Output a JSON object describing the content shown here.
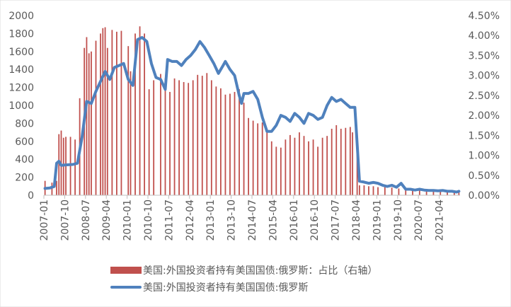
{
  "chart_data": {
    "type": "bar+line",
    "title": "",
    "left_axis": {
      "min": 0,
      "max": 2000,
      "step": 200,
      "ticks": [
        "0",
        "200",
        "400",
        "600",
        "800",
        "1000",
        "1200",
        "1400",
        "1600",
        "1800",
        "2000"
      ]
    },
    "right_axis": {
      "min": 0,
      "max": 4.5,
      "step": 0.5,
      "ticks": [
        "0.00%",
        "0.50%",
        "1.00%",
        "1.50%",
        "2.00%",
        "2.50%",
        "3.00%",
        "3.50%",
        "4.00%",
        "4.50%"
      ]
    },
    "x_start": "2007-01",
    "x_end": "2021-12",
    "x_tick_labels": [
      "2007-01",
      "2007-10",
      "2008-07",
      "2009-04",
      "2010-01",
      "2010-10",
      "2011-07",
      "2012-04",
      "2013-01",
      "2013-10",
      "2014-07",
      "2015-04",
      "2016-01",
      "2016-10",
      "2017-07",
      "2018-04",
      "2019-01",
      "2019-10",
      "2020-07",
      "2021-04"
    ],
    "series": [
      {
        "name": "美国:外国投资者持有美国国债:俄罗斯：占比（右轴）",
        "kind": "bar",
        "axis": "left",
        "color": "#c0504d",
        "points": [
          [
            "2007-01",
            160
          ],
          [
            "2007-04",
            140
          ],
          [
            "2007-06",
            160
          ],
          [
            "2007-07",
            680
          ],
          [
            "2007-08",
            720
          ],
          [
            "2007-09",
            640
          ],
          [
            "2007-10",
            650
          ],
          [
            "2007-12",
            650
          ],
          [
            "2008-02",
            620
          ],
          [
            "2008-04",
            1080
          ],
          [
            "2008-06",
            1640
          ],
          [
            "2008-07",
            1760
          ],
          [
            "2008-08",
            1580
          ],
          [
            "2008-09",
            1600
          ],
          [
            "2008-11",
            1720
          ],
          [
            "2009-01",
            1800
          ],
          [
            "2009-02",
            1860
          ],
          [
            "2009-03",
            1870
          ],
          [
            "2009-04",
            1640
          ],
          [
            "2009-06",
            1840
          ],
          [
            "2009-08",
            1820
          ],
          [
            "2009-10",
            1830
          ],
          [
            "2010-01",
            1660
          ],
          [
            "2010-02",
            1380
          ],
          [
            "2010-04",
            1800
          ],
          [
            "2010-06",
            1880
          ],
          [
            "2010-08",
            1800
          ],
          [
            "2010-10",
            1180
          ],
          [
            "2010-12",
            1280
          ],
          [
            "2011-03",
            1350
          ],
          [
            "2011-05",
            1300
          ],
          [
            "2011-07",
            1150
          ],
          [
            "2011-09",
            1300
          ],
          [
            "2011-11",
            1280
          ],
          [
            "2012-01",
            1260
          ],
          [
            "2012-03",
            1250
          ],
          [
            "2012-05",
            1280
          ],
          [
            "2012-07",
            1340
          ],
          [
            "2012-09",
            1330
          ],
          [
            "2012-11",
            1360
          ],
          [
            "2013-01",
            1280
          ],
          [
            "2013-03",
            1210
          ],
          [
            "2013-05",
            1190
          ],
          [
            "2013-07",
            1120
          ],
          [
            "2013-09",
            1130
          ],
          [
            "2013-11",
            1150
          ],
          [
            "2014-01",
            1180
          ],
          [
            "2014-03",
            1030
          ],
          [
            "2014-05",
            860
          ],
          [
            "2014-07",
            830
          ],
          [
            "2014-09",
            800
          ],
          [
            "2014-11",
            810
          ],
          [
            "2015-01",
            740
          ],
          [
            "2015-03",
            600
          ],
          [
            "2015-05",
            540
          ],
          [
            "2015-07",
            530
          ],
          [
            "2015-09",
            620
          ],
          [
            "2015-11",
            670
          ],
          [
            "2016-01",
            640
          ],
          [
            "2016-03",
            700
          ],
          [
            "2016-05",
            660
          ],
          [
            "2016-07",
            600
          ],
          [
            "2016-09",
            620
          ],
          [
            "2016-11",
            540
          ],
          [
            "2017-01",
            640
          ],
          [
            "2017-03",
            660
          ],
          [
            "2017-05",
            740
          ],
          [
            "2017-07",
            780
          ],
          [
            "2017-09",
            740
          ],
          [
            "2017-11",
            750
          ],
          [
            "2018-01",
            760
          ],
          [
            "2018-02",
            700
          ],
          [
            "2018-04",
            660
          ],
          [
            "2018-05",
            110
          ],
          [
            "2018-07",
            110
          ],
          [
            "2018-09",
            100
          ],
          [
            "2018-11",
            100
          ],
          [
            "2019-01",
            90
          ],
          [
            "2019-04",
            90
          ],
          [
            "2019-07",
            85
          ],
          [
            "2019-10",
            75
          ],
          [
            "2020-01",
            80
          ],
          [
            "2020-04",
            70
          ],
          [
            "2020-07",
            70
          ],
          [
            "2020-10",
            65
          ],
          [
            "2021-01",
            60
          ],
          [
            "2021-04",
            55
          ],
          [
            "2021-07",
            50
          ],
          [
            "2021-10",
            45
          ],
          [
            "2021-12",
            40
          ]
        ]
      },
      {
        "name": "美国:外国投资者持有美国国债:俄罗斯",
        "kind": "line",
        "axis": "right",
        "color": "#4f81bd",
        "points": [
          [
            "2007-01",
            0.17
          ],
          [
            "2007-03",
            0.18
          ],
          [
            "2007-05",
            0.22
          ],
          [
            "2007-06",
            0.8
          ],
          [
            "2007-07",
            0.85
          ],
          [
            "2007-08",
            0.75
          ],
          [
            "2007-10",
            0.76
          ],
          [
            "2008-01",
            0.77
          ],
          [
            "2008-03",
            0.8
          ],
          [
            "2008-05",
            1.45
          ],
          [
            "2008-07",
            2.35
          ],
          [
            "2008-09",
            2.3
          ],
          [
            "2008-11",
            2.6
          ],
          [
            "2009-01",
            2.85
          ],
          [
            "2009-03",
            3.1
          ],
          [
            "2009-05",
            2.9
          ],
          [
            "2009-07",
            3.2
          ],
          [
            "2009-09",
            3.25
          ],
          [
            "2009-11",
            3.3
          ],
          [
            "2010-01",
            2.9
          ],
          [
            "2010-03",
            2.75
          ],
          [
            "2010-05",
            3.9
          ],
          [
            "2010-07",
            3.95
          ],
          [
            "2010-09",
            3.85
          ],
          [
            "2010-11",
            3.3
          ],
          [
            "2011-01",
            2.95
          ],
          [
            "2011-03",
            2.9
          ],
          [
            "2011-05",
            2.65
          ],
          [
            "2011-06",
            3.4
          ],
          [
            "2011-08",
            3.35
          ],
          [
            "2011-10",
            3.35
          ],
          [
            "2011-12",
            3.25
          ],
          [
            "2012-02",
            3.4
          ],
          [
            "2012-04",
            3.5
          ],
          [
            "2012-06",
            3.65
          ],
          [
            "2012-08",
            3.85
          ],
          [
            "2012-10",
            3.7
          ],
          [
            "2012-12",
            3.5
          ],
          [
            "2013-02",
            3.3
          ],
          [
            "2013-04",
            3.05
          ],
          [
            "2013-06",
            3.25
          ],
          [
            "2013-07",
            3.35
          ],
          [
            "2013-09",
            3.15
          ],
          [
            "2013-11",
            3.0
          ],
          [
            "2014-01",
            2.5
          ],
          [
            "2014-02",
            2.3
          ],
          [
            "2014-03",
            2.55
          ],
          [
            "2014-05",
            2.55
          ],
          [
            "2014-07",
            2.6
          ],
          [
            "2014-09",
            2.4
          ],
          [
            "2014-11",
            1.95
          ],
          [
            "2015-01",
            1.6
          ],
          [
            "2015-03",
            1.6
          ],
          [
            "2015-05",
            1.75
          ],
          [
            "2015-07",
            2.0
          ],
          [
            "2015-09",
            1.95
          ],
          [
            "2015-11",
            1.85
          ],
          [
            "2016-01",
            2.05
          ],
          [
            "2016-03",
            1.95
          ],
          [
            "2016-05",
            1.8
          ],
          [
            "2016-07",
            2.05
          ],
          [
            "2016-09",
            2.0
          ],
          [
            "2016-11",
            1.9
          ],
          [
            "2017-01",
            1.95
          ],
          [
            "2017-03",
            2.25
          ],
          [
            "2017-05",
            2.45
          ],
          [
            "2017-07",
            2.35
          ],
          [
            "2017-09",
            2.4
          ],
          [
            "2017-11",
            2.3
          ],
          [
            "2018-01",
            2.2
          ],
          [
            "2018-03",
            2.2
          ],
          [
            "2018-05",
            0.35
          ],
          [
            "2018-07",
            0.33
          ],
          [
            "2018-09",
            0.3
          ],
          [
            "2018-11",
            0.32
          ],
          [
            "2019-01",
            0.3
          ],
          [
            "2019-03",
            0.25
          ],
          [
            "2019-05",
            0.22
          ],
          [
            "2019-07",
            0.25
          ],
          [
            "2019-09",
            0.2
          ],
          [
            "2019-11",
            0.3
          ],
          [
            "2020-01",
            0.15
          ],
          [
            "2020-03",
            0.15
          ],
          [
            "2020-05",
            0.13
          ],
          [
            "2020-07",
            0.15
          ],
          [
            "2020-09",
            0.13
          ],
          [
            "2020-11",
            0.12
          ],
          [
            "2021-01",
            0.12
          ],
          [
            "2021-03",
            0.11
          ],
          [
            "2021-05",
            0.12
          ],
          [
            "2021-07",
            0.1
          ],
          [
            "2021-09",
            0.1
          ],
          [
            "2021-11",
            0.08
          ],
          [
            "2021-12",
            0.1
          ]
        ]
      }
    ],
    "legend_position": "bottom",
    "grid": false
  }
}
